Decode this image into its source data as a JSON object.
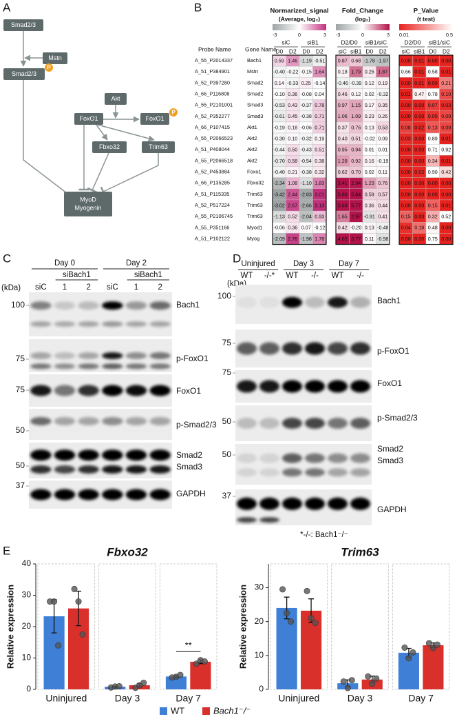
{
  "panels": {
    "A": {
      "letter": "A",
      "nodes": [
        {
          "lines": [
            "Smad2/3"
          ]
        },
        {
          "lines": [
            "Mstn"
          ]
        },
        {
          "lines": [
            "Smad2/3"
          ],
          "phospho": "P"
        },
        {
          "lines": [
            "Akt"
          ]
        },
        {
          "lines": [
            "FoxO1"
          ]
        },
        {
          "lines": [
            "FoxO1"
          ],
          "phospho": "P"
        },
        {
          "lines": [
            "Fbxo32"
          ]
        },
        {
          "lines": [
            "Trim63"
          ]
        },
        {
          "lines": [
            "MyoD",
            "Myogenin"
          ]
        }
      ]
    },
    "B": {
      "letter": "B",
      "probe_header": "Probe Name",
      "gene_header": "Gene Name",
      "groups": [
        {
          "title": "Normarized_signal",
          "subtitle": "(Average, log₂)",
          "scale_ticks": [
            -3,
            0,
            3
          ],
          "colors": [
            "#9ea3a3",
            "#ffffff",
            "#c2307c"
          ],
          "subgroups": [
            "siC",
            "siB1"
          ],
          "columns": [
            "D0",
            "D2",
            "D0",
            "D2"
          ]
        },
        {
          "title": "Fold_Change",
          "subtitle": "(log₂)",
          "scale_ticks": [
            -3,
            0,
            3
          ],
          "colors": [
            "#9ea3a3",
            "#ffffff",
            "#b3124a"
          ],
          "subgroups": [
            "D2/D0",
            "siB1/siC"
          ],
          "columns": [
            "siC",
            "siB1",
            "D0",
            "D2"
          ]
        },
        {
          "title": "P_Value",
          "subtitle": "(t test)",
          "scale_ticks": [
            0.01,
            0.5
          ],
          "colors": [
            "#e8231f",
            "#ffffff"
          ],
          "subgroups": [
            "D2/D0",
            "siB1/siC"
          ],
          "columns": [
            "siC",
            "siB1",
            "D0",
            "D2"
          ]
        }
      ],
      "rows": [
        {
          "probe": "A_55_P2014337",
          "gene": "Bach1",
          "cells": [
            "0.59",
            "1.46",
            "-1.19",
            "-0.51",
            "0.87",
            "0.68",
            "-1.78",
            "-1.97",
            "0.00",
            "0.01",
            "0.00",
            "0.00"
          ]
        },
        {
          "probe": "A_51_P384901",
          "gene": "Mstn",
          "cells": [
            "-0.40",
            "-0.22",
            "-0.15",
            "1.64",
            "0.18",
            "1.79",
            "0.26",
            "1.87",
            "0.66",
            "0.01",
            "0.58",
            "0.01"
          ]
        },
        {
          "probe": "A_52_P397280",
          "gene": "Smad2",
          "cells": [
            "0.14",
            "-0.33",
            "0.25",
            "-0.14",
            "-0.46",
            "-0.39",
            "0.12",
            "0.19",
            "0.00",
            "0.01",
            "0.00",
            "0.21"
          ]
        },
        {
          "probe": "A_66_P116808",
          "gene": "Smad2",
          "cells": [
            "-0.10",
            "0.36",
            "-0.08",
            "0.04",
            "0.46",
            "0.12",
            "0.02",
            "-0.32",
            "0.01",
            "0.47",
            "0.78",
            "0.10"
          ]
        },
        {
          "probe": "A_55_P2101001",
          "gene": "Smad3",
          "cells": [
            "-0.53",
            "0.43",
            "-0.37",
            "0.78",
            "0.97",
            "1.15",
            "0.17",
            "0.35",
            "0.00",
            "0.00",
            "0.07",
            "0.03"
          ]
        },
        {
          "probe": "A_52_P352277",
          "gene": "Smad3",
          "cells": [
            "-0.61",
            "0.45",
            "-0.38",
            "0.71",
            "1.06",
            "1.09",
            "0.23",
            "0.26",
            "0.00",
            "0.00",
            "0.05",
            "0.09"
          ]
        },
        {
          "probe": "A_66_P107415",
          "gene": "Akt1",
          "cells": [
            "-0.19",
            "0.18",
            "-0.06",
            "0.71",
            "0.37",
            "0.76",
            "0.13",
            "0.53",
            "0.08",
            "0.02",
            "0.13",
            "0.09"
          ]
        },
        {
          "probe": "A_55_P2066523",
          "gene": "Akt2",
          "cells": [
            "-0.30",
            "0.10",
            "-0.32",
            "0.19",
            "0.40",
            "0.51",
            "-0.02",
            "0.09",
            "0.03",
            "0.00",
            "0.89",
            "0.01"
          ]
        },
        {
          "probe": "A_51_P408044",
          "gene": "Akt2",
          "cells": [
            "-0.44",
            "0.50",
            "-0.43",
            "0.51",
            "0.95",
            "0.94",
            "0.01",
            "0.01",
            "0.00",
            "0.00",
            "0.71",
            "0.92"
          ]
        },
        {
          "probe": "A_55_P2066518",
          "gene": "Akt2",
          "cells": [
            "-0.70",
            "0.58",
            "-0.54",
            "0.38",
            "1.28",
            "0.92",
            "0.16",
            "-0.19",
            "0.00",
            "0.00",
            "0.34",
            "0.01"
          ]
        },
        {
          "probe": "A_52_P453884",
          "gene": "Foxo1",
          "cells": [
            "-0.40",
            "0.21",
            "-0.38",
            "0.32",
            "0.62",
            "0.70",
            "0.02",
            "0.11",
            "0.00",
            "0.02",
            "0.90",
            "0.42"
          ]
        },
        {
          "probe": "A_66_P135285",
          "gene": "Fbxo32",
          "cells": [
            "-2.34",
            "1.08",
            "-1.10",
            "1.83",
            "3.41",
            "2.94",
            "1.23",
            "0.76",
            "0.00",
            "0.00",
            "0.00",
            "0.00"
          ]
        },
        {
          "probe": "A_51_P115335",
          "gene": "Trim63",
          "cells": [
            "-3.42",
            "2.44",
            "-2.83",
            "3.01",
            "5.86",
            "5.84",
            "0.59",
            "0.57",
            "0.00",
            "0.00",
            "0.00",
            "0.00"
          ]
        },
        {
          "probe": "A_52_P517224",
          "gene": "Trim63",
          "cells": [
            "-3.02",
            "2.67",
            "-2.66",
            "3.13",
            "5.69",
            "5.77",
            "0.36",
            "0.44",
            "0.00",
            "0.00",
            "0.15",
            "0.01"
          ]
        },
        {
          "probe": "A_55_P2106745",
          "gene": "Trim63",
          "cells": [
            "-1.13",
            "0.52",
            "-2.04",
            "0.93",
            "1.65",
            "2.97",
            "-0.91",
            "0.41",
            "0.15",
            "0.00",
            "0.32",
            "0.52"
          ]
        },
        {
          "probe": "A_55_P351166",
          "gene": "Myod1",
          "cells": [
            "-0.06",
            "0.36",
            "0.07",
            "-0.12",
            "0.42",
            "-0.20",
            "0.13",
            "-0.48",
            "0.04",
            "0.18",
            "0.48",
            "0.00"
          ]
        },
        {
          "probe": "A_51_P102122",
          "gene": "Myog",
          "cells": [
            "-2.09",
            "2.76",
            "-1.98",
            "1.78",
            "4.85",
            "3.77",
            "0.11",
            "-0.98",
            "0.00",
            "0.00",
            "0.75",
            "0.00"
          ]
        }
      ]
    },
    "C": {
      "letter": "C",
      "kda": "(kDa)",
      "groups": [
        {
          "label": "Day 0",
          "sub": "siBach1"
        },
        {
          "label": "Day 2",
          "sub": "siBach1"
        }
      ],
      "lanes": [
        "siC",
        "1",
        "2",
        "siC",
        "1",
        "2"
      ],
      "strips": [
        {
          "labels": [
            "Bach1"
          ],
          "marker": 100
        },
        {
          "labels": [
            "p-FoxO1"
          ],
          "marker": 75
        },
        {
          "labels": [
            "FoxO1"
          ],
          "marker": 75
        },
        {
          "labels": [
            "p-Smad2/3"
          ],
          "marker": 50
        },
        {
          "labels": [
            "Smad2",
            "Smad3"
          ],
          "marker": 50
        },
        {
          "labels": [
            "GAPDH"
          ],
          "marker": 37
        }
      ]
    },
    "D": {
      "letter": "D",
      "kda": "(kDa)",
      "groups": [
        {
          "label": "Uninjured"
        },
        {
          "label": "Day 3"
        },
        {
          "label": "Day 7"
        }
      ],
      "lanes": [
        "WT",
        "-/-*",
        "WT",
        "-/-",
        "WT",
        "-/-"
      ],
      "strips": [
        {
          "labels": [
            "Bach1"
          ],
          "marker": 100
        },
        {
          "labels": [
            "p-FoxO1"
          ],
          "marker": 75
        },
        {
          "labels": [
            "FoxO1"
          ],
          "marker": 75
        },
        {
          "labels": [
            "p-Smad2/3"
          ],
          "marker": 50
        },
        {
          "labels": [
            "Smad2",
            "Smad3"
          ],
          "marker": 50
        },
        {
          "labels": [
            "GAPDH"
          ],
          "marker": 37
        }
      ],
      "note": "*-/-: Bach1⁻/⁻"
    },
    "E": {
      "letter": "E"
    }
  },
  "chart_data": [
    {
      "type": "bar",
      "title": "Fbxo32",
      "y_label": "Relative expression",
      "categories": [
        "Uninjured",
        "Day 3",
        "Day 7"
      ],
      "series": [
        {
          "name": "WT",
          "color": "#3f7fd6",
          "values": [
            23.3,
            0.83,
            4.1
          ],
          "errors": [
            5.3,
            0.15,
            0.25
          ],
          "points": [
            [
              28,
              28,
              14
            ],
            [
              0.6,
              0.9,
              1.0
            ],
            [
              3.8,
              4.0,
              4.6
            ]
          ]
        },
        {
          "name": "Bach1⁻/⁻",
          "color": "#d9302c",
          "values": [
            25.8,
            1.3,
            8.8
          ],
          "errors": [
            5.5,
            0.5,
            0.6
          ],
          "points": [
            [
              32,
              28,
              17.5
            ],
            [
              0.5,
              1.3,
              2.1
            ],
            [
              8.2,
              9.3,
              8.9
            ]
          ]
        }
      ],
      "ylim": [
        0,
        40
      ],
      "yticks": [
        0,
        10,
        20,
        30,
        40
      ],
      "annotation": "**"
    },
    {
      "type": "bar",
      "title": "Trim63",
      "y_label": "Relative expression",
      "categories": [
        "Uninjured",
        "Day 3",
        "Day 7"
      ],
      "series": [
        {
          "name": "WT",
          "color": "#3f7fd6",
          "values": [
            24,
            1.8,
            10.8
          ],
          "errors": [
            3.2,
            1,
            1.3
          ],
          "points": [
            [
              29.5,
              22.5,
              20
            ],
            [
              2.3,
              0.4,
              2.7
            ],
            [
              12.3,
              9.2,
              10.9
            ]
          ]
        },
        {
          "name": "Bach1⁻/⁻",
          "color": "#d9302c",
          "values": [
            23.2,
            2.9,
            13
          ],
          "errors": [
            3.5,
            1,
            0.7
          ],
          "points": [
            [
              29,
              21,
              19.6
            ],
            [
              3.8,
              1.7,
              3.2
            ],
            [
              13.6,
              12.2,
              13.2
            ]
          ]
        }
      ],
      "ylim": [
        0,
        37
      ],
      "yticks": [
        0,
        10,
        20,
        30
      ]
    }
  ]
}
